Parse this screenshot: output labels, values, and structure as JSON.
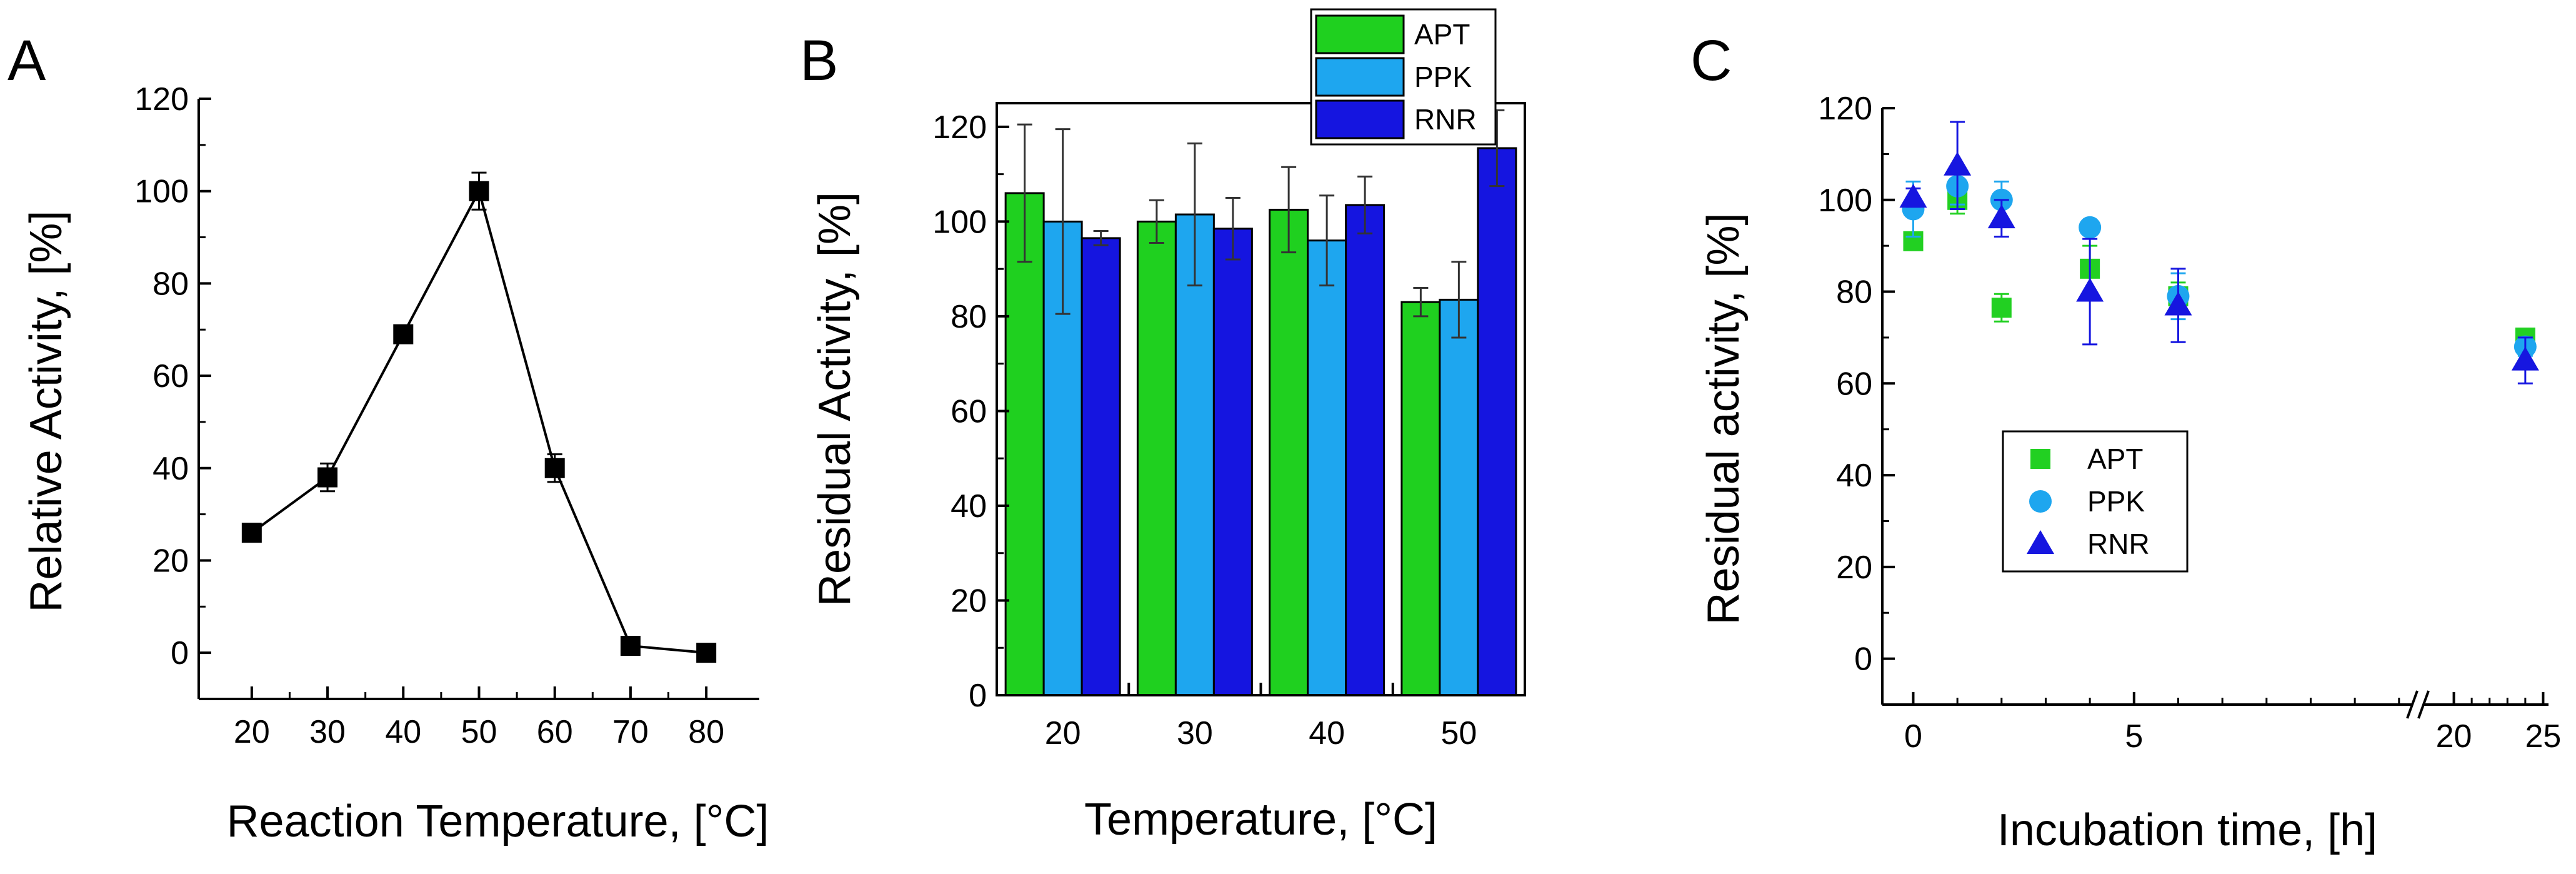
{
  "chart_data": [
    {
      "panel": "A",
      "type": "line",
      "title": "",
      "xlabel": "Reaction Temperature, [°C]",
      "ylabel": "Relative Activity, [%]",
      "xlim": [
        13,
        87
      ],
      "ylim": [
        -10,
        120
      ],
      "xticks": [
        20,
        30,
        40,
        50,
        60,
        70,
        80
      ],
      "yticks": [
        0,
        20,
        40,
        60,
        80,
        100,
        120
      ],
      "xtick_labels": [
        "20",
        "30",
        "40",
        "50",
        "60",
        "70",
        "80"
      ],
      "ytick_labels": [
        "0",
        "20",
        "40",
        "60",
        "80",
        "100",
        "120"
      ],
      "grid": false,
      "marker_color": "#000000",
      "series": [
        {
          "name": "Relative Activity",
          "x": [
            20,
            30,
            40,
            50,
            60,
            70,
            80
          ],
          "values": [
            26,
            38,
            69,
            100,
            40,
            1.5,
            0
          ],
          "error": [
            1.5,
            3,
            1.5,
            4,
            3,
            1,
            0.5
          ]
        }
      ]
    },
    {
      "panel": "B",
      "type": "bar",
      "title": "",
      "xlabel": "Temperature, [°C]",
      "ylabel": "Residual Activity, [%]",
      "ylim": [
        0,
        125
      ],
      "yticks": [
        0,
        20,
        40,
        60,
        80,
        100,
        120
      ],
      "ytick_labels": [
        "0",
        "20",
        "40",
        "60",
        "80",
        "100",
        "120"
      ],
      "categories": [
        "20",
        "30",
        "40",
        "50"
      ],
      "legend_position": "top",
      "grid": false,
      "series": [
        {
          "name": "APT",
          "color": "#1fd01f",
          "values": [
            106,
            100,
            102.5,
            83
          ],
          "error": [
            14.5,
            4.5,
            9,
            3
          ]
        },
        {
          "name": "PPK",
          "color": "#1ea6ef",
          "values": [
            100,
            101.5,
            96,
            83.5
          ],
          "error": [
            19.5,
            15,
            9.5,
            8
          ]
        },
        {
          "name": "RNR",
          "color": "#1515e0",
          "values": [
            96.5,
            98.5,
            103.5,
            115.5
          ],
          "error": [
            1.5,
            6.5,
            6,
            8
          ]
        }
      ]
    },
    {
      "panel": "C",
      "type": "scatter",
      "title": "",
      "xlabel": "Incubation time, [h]",
      "ylabel": "Residual activity, [%]",
      "ylim": [
        -10,
        120
      ],
      "yticks": [
        0,
        20,
        40,
        60,
        80,
        100,
        120
      ],
      "ytick_labels": [
        "0",
        "20",
        "40",
        "60",
        "80",
        "100",
        "120"
      ],
      "x_segments": [
        [
          -0.7,
          11.3
        ],
        [
          18.3,
          25.3
        ]
      ],
      "xticks": [
        0,
        5,
        20,
        25
      ],
      "xtick_labels": [
        "0",
        "5",
        "20",
        "25"
      ],
      "axis_break": true,
      "legend_position": "center",
      "grid": false,
      "series": [
        {
          "name": "APT",
          "color": "#22d022",
          "marker": "square",
          "x": [
            0,
            1,
            2,
            4,
            6,
            24
          ],
          "values": [
            91,
            100,
            76.5,
            85,
            79,
            70
          ],
          "error": [
            1,
            3,
            3,
            5,
            3,
            1.5
          ]
        },
        {
          "name": "PPK",
          "color": "#1ea6ef",
          "marker": "circle",
          "x": [
            0,
            1,
            2,
            4,
            6,
            24
          ],
          "values": [
            98,
            103,
            100,
            94,
            79,
            68
          ],
          "error": [
            6,
            4,
            4,
            0,
            5,
            2
          ]
        },
        {
          "name": "RNR",
          "color": "#1616e0",
          "marker": "triangle",
          "x": [
            0,
            1,
            2,
            4,
            6,
            24
          ],
          "values": [
            100.5,
            107.5,
            96,
            80,
            77,
            65
          ],
          "error": [
            2,
            9.5,
            4,
            11.5,
            8,
            5
          ]
        }
      ]
    }
  ]
}
